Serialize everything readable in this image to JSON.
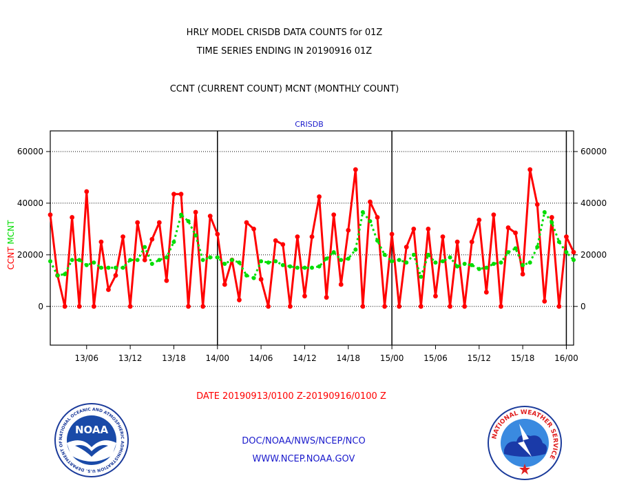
{
  "header": {
    "title_line1": "HRLY MODEL CRISDB DATA COUNTS for 01Z",
    "title_line2": "TIME SERIES ENDING IN 20190916 01Z",
    "subtitle": "CCNT (CURRENT COUNT) MCNT (MONTHLY COUNT)"
  },
  "chart_data": {
    "type": "line",
    "title": "CRISDB",
    "ylabel_parts": [
      {
        "text": "CCNT",
        "color": "#ff0000"
      },
      {
        "text": "MCNT",
        "color": "#00dd00"
      }
    ],
    "xlabel": "DATE 20190913/0100 Z-20190916/0100 Z",
    "ylim": [
      -15000,
      68000
    ],
    "yticks": [
      0,
      20000,
      40000,
      60000
    ],
    "ytick_labels": [
      "0",
      "20000",
      "40000",
      "60000"
    ],
    "x_unit": "hours since 20190913/00Z",
    "xlim": [
      1,
      73
    ],
    "xticks": [
      6,
      12,
      18,
      24,
      30,
      36,
      42,
      48,
      54,
      60,
      66,
      72
    ],
    "xtick_labels": [
      "13/06",
      "13/12",
      "13/18",
      "14/00",
      "14/06",
      "14/12",
      "14/18",
      "15/00",
      "15/06",
      "15/12",
      "15/18",
      "16/00"
    ],
    "day_boundaries": [
      24,
      48,
      72
    ],
    "x": [
      1,
      2,
      3,
      4,
      5,
      6,
      7,
      8,
      9,
      10,
      11,
      12,
      13,
      14,
      15,
      16,
      17,
      18,
      19,
      20,
      21,
      22,
      23,
      24,
      25,
      26,
      27,
      28,
      29,
      30,
      31,
      32,
      33,
      34,
      35,
      36,
      37,
      38,
      39,
      40,
      41,
      42,
      43,
      44,
      45,
      46,
      47,
      48,
      49,
      50,
      51,
      52,
      53,
      54,
      55,
      56,
      57,
      58,
      59,
      60,
      61,
      62,
      63,
      64,
      65,
      66,
      67,
      68,
      69,
      70,
      71,
      72,
      73
    ],
    "series": [
      {
        "name": "CCNT",
        "color": "#ff0000",
        "values": [
          35500,
          12000,
          0,
          34500,
          0,
          44500,
          0,
          25000,
          6500,
          12000,
          27000,
          0,
          32500,
          18000,
          26000,
          32500,
          10000,
          43500,
          43500,
          0,
          36500,
          0,
          35000,
          28000,
          8500,
          18000,
          2500,
          32500,
          30000,
          10500,
          0,
          25500,
          24000,
          0,
          27000,
          4000,
          27000,
          42500,
          3500,
          35500,
          8500,
          29500,
          53000,
          0,
          40500,
          34500,
          0,
          28000,
          0,
          23000,
          30000,
          0,
          30000,
          4000,
          27000,
          0,
          25000,
          0,
          25000,
          33500,
          5500,
          35500,
          0,
          30500,
          28500,
          12500,
          53000,
          39500,
          2000,
          34500,
          0,
          27000,
          21000
        ]
      },
      {
        "name": "MCNT",
        "color": "#00dd00",
        "values": [
          17500,
          12000,
          12500,
          18000,
          18000,
          16000,
          17000,
          15000,
          15000,
          15000,
          15000,
          18000,
          18000,
          23000,
          16500,
          18000,
          19000,
          25000,
          35500,
          33000,
          27500,
          18000,
          19000,
          19000,
          16500,
          18000,
          17000,
          12000,
          11000,
          17500,
          17000,
          17500,
          16000,
          15500,
          15000,
          15000,
          15000,
          15500,
          18500,
          21000,
          18000,
          18500,
          22000,
          36500,
          33000,
          25500,
          20000,
          17500,
          18000,
          17000,
          20000,
          11500,
          20000,
          17000,
          17500,
          19000,
          15500,
          16500,
          16000,
          14500,
          15000,
          16500,
          17000,
          21000,
          22500,
          16000,
          17000,
          23000,
          36500,
          32500,
          25000,
          21000,
          18000
        ]
      }
    ]
  },
  "footer": {
    "agency_line": "DOC/NOAA/NWS/NCEP/NCO",
    "website": "WWW.NCEP.NOAA.GOV",
    "noaa_logo_text": "NOAA",
    "noaa_ring_text": "NATIONAL OCEANIC AND ATMOSPHERIC ADMINISTRATION  U.S. DEPARTMENT OF COMMERCE",
    "nws_ring_text": "NATIONAL WEATHER SERVICE"
  }
}
